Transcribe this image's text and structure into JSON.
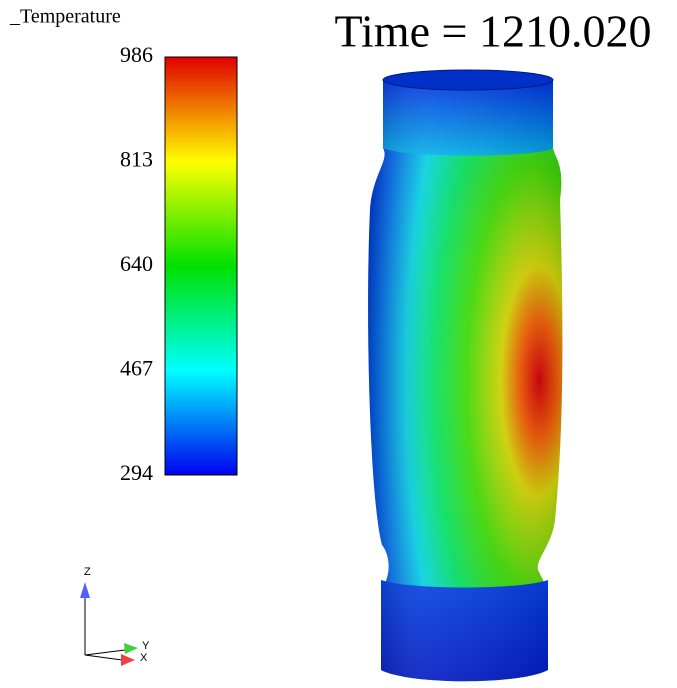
{
  "legend": {
    "title": "_Temperature",
    "ticks": [
      986,
      813,
      640,
      467,
      294
    ]
  },
  "time_label": "Time = 1210.020",
  "axes": {
    "z": "Z",
    "y": "Y",
    "x": "X"
  }
}
